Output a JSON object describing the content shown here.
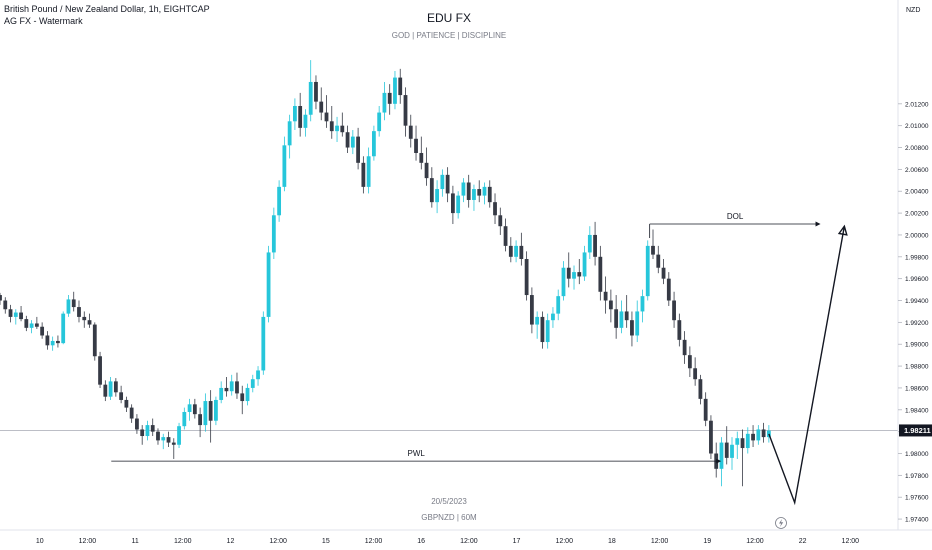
{
  "header": {
    "symbol_line": "British Pound / New Zealand Dollar, 1h, EIGHTCAP",
    "watermark_line": "AG FX - Watermark"
  },
  "watermark": {
    "title": "EDU FX",
    "subtitle": "GOD  |  PATIENCE  |  DISCIPLINE",
    "date": "20/5/2023",
    "symbol": "GBPNZD | 60M"
  },
  "price_axis": {
    "currency": "NZD",
    "current_price_label": "1.98211"
  },
  "annotations": {
    "dol_label": "DOL",
    "pwl_label": "PWL"
  },
  "colors": {
    "bull": "#26c6da",
    "bear": "#363a45",
    "axis_text": "#131722",
    "watermark_text": "#787b86",
    "current_price_line": "#b2b5be"
  },
  "chart_data": {
    "type": "candlestick",
    "title": "British Pound / New Zealand Dollar, 1h, EIGHTCAP",
    "ylabel": "NZD",
    "ylim": [
      1.973,
      2.0215
    ],
    "y_ticks": [
      "2.01200",
      "2.01000",
      "2.00800",
      "2.00600",
      "2.00400",
      "2.00200",
      "2.00000",
      "1.99800",
      "1.99600",
      "1.99400",
      "1.99200",
      "1.99000",
      "1.98800",
      "1.98600",
      "1.98400",
      "1.98200",
      "1.98000",
      "1.97800",
      "1.97600",
      "1.97400"
    ],
    "y_tick_values": [
      2.012,
      2.01,
      2.008,
      2.006,
      2.004,
      2.002,
      2.0,
      1.998,
      1.996,
      1.994,
      1.992,
      1.99,
      1.988,
      1.986,
      1.984,
      1.982,
      1.98,
      1.978,
      1.976,
      1.974
    ],
    "x_ticks": [
      {
        "label": "10",
        "t": 0.1
      },
      {
        "label": "12:00",
        "t": 0.22
      },
      {
        "label": "11",
        "t": 0.34
      },
      {
        "label": "12:00",
        "t": 0.46
      },
      {
        "label": "12",
        "t": 0.58
      },
      {
        "label": "12:00",
        "t": 0.7
      },
      {
        "label": "15",
        "t": 0.82
      },
      {
        "label": "12:00",
        "t": 0.94
      },
      {
        "label": "16",
        "t": 1.06
      },
      {
        "label": "12:00",
        "t": 1.18
      },
      {
        "label": "17",
        "t": 1.3
      },
      {
        "label": "12:00",
        "t": 1.42
      },
      {
        "label": "18",
        "t": 1.54
      },
      {
        "label": "12:00",
        "t": 1.66
      },
      {
        "label": "19",
        "t": 1.78
      },
      {
        "label": "12:00",
        "t": 1.9
      },
      {
        "label": "22",
        "t": 2.02
      },
      {
        "label": "12:00",
        "t": 2.14
      }
    ],
    "x_range": [
      0,
      2.26
    ],
    "current_price": 1.98211,
    "levels": {
      "dol": {
        "price": 2.001,
        "t_start": 1.635,
        "t_end": 2.065
      },
      "pwl": {
        "price": 1.9793,
        "t_start": 0.28,
        "t_end": 1.815
      }
    },
    "projection": [
      {
        "t": 1.935,
        "price": 1.9818
      },
      {
        "t": 2.0,
        "price": 1.9755
      },
      {
        "t": 2.125,
        "price": 2.0008
      }
    ],
    "candles": [
      [
        1.9945,
        1.9947,
        1.9936,
        1.994
      ],
      [
        1.994,
        1.9943,
        1.9928,
        1.9932
      ],
      [
        1.9932,
        1.9936,
        1.992,
        1.9925
      ],
      [
        1.9925,
        1.9932,
        1.9918,
        1.9929
      ],
      [
        1.9929,
        1.9935,
        1.9921,
        1.9923
      ],
      [
        1.9923,
        1.9926,
        1.9912,
        1.9915
      ],
      [
        1.9915,
        1.9922,
        1.991,
        1.9919
      ],
      [
        1.9919,
        1.9925,
        1.9914,
        1.9916
      ],
      [
        1.9916,
        1.992,
        1.9905,
        1.9908
      ],
      [
        1.9908,
        1.9912,
        1.9895,
        1.9899
      ],
      [
        1.9899,
        1.9907,
        1.9894,
        1.9903
      ],
      [
        1.9903,
        1.9908,
        1.9897,
        1.9901
      ],
      [
        1.9901,
        1.993,
        1.99,
        1.9928
      ],
      [
        1.9928,
        1.9945,
        1.9925,
        1.9941
      ],
      [
        1.9941,
        1.9948,
        1.993,
        1.9934
      ],
      [
        1.9934,
        1.994,
        1.992,
        1.9925
      ],
      [
        1.9925,
        1.993,
        1.9915,
        1.9922
      ],
      [
        1.9922,
        1.9928,
        1.9915,
        1.9918
      ],
      [
        1.9918,
        1.992,
        1.9885,
        1.9889
      ],
      [
        1.9889,
        1.9893,
        1.986,
        1.9863
      ],
      [
        1.9863,
        1.9867,
        1.9848,
        1.9852
      ],
      [
        1.9852,
        1.987,
        1.9849,
        1.9866
      ],
      [
        1.9866,
        1.9869,
        1.9852,
        1.9856
      ],
      [
        1.9856,
        1.9862,
        1.9846,
        1.9849
      ],
      [
        1.9849,
        1.9852,
        1.9838,
        1.9842
      ],
      [
        1.9842,
        1.9845,
        1.9828,
        1.9832
      ],
      [
        1.9832,
        1.9836,
        1.9818,
        1.9822
      ],
      [
        1.9822,
        1.9826,
        1.9808,
        1.9816
      ],
      [
        1.9816,
        1.983,
        1.9812,
        1.9826
      ],
      [
        1.9826,
        1.9832,
        1.9816,
        1.982
      ],
      [
        1.982,
        1.9823,
        1.9808,
        1.9812
      ],
      [
        1.9812,
        1.9818,
        1.9804,
        1.9815
      ],
      [
        1.9815,
        1.982,
        1.9806,
        1.981
      ],
      [
        1.981,
        1.9814,
        1.9795,
        1.9808
      ],
      [
        1.9808,
        1.9828,
        1.9805,
        1.9825
      ],
      [
        1.9825,
        1.9842,
        1.9822,
        1.9838
      ],
      [
        1.9838,
        1.985,
        1.983,
        1.9845
      ],
      [
        1.9845,
        1.985,
        1.9832,
        1.9836
      ],
      [
        1.9836,
        1.9842,
        1.9815,
        1.9826
      ],
      [
        1.9826,
        1.9855,
        1.982,
        1.9848
      ],
      [
        1.9848,
        1.9858,
        1.981,
        1.983
      ],
      [
        1.983,
        1.9852,
        1.9826,
        1.9849
      ],
      [
        1.9849,
        1.9866,
        1.9846,
        1.986
      ],
      [
        1.986,
        1.987,
        1.9852,
        1.9857
      ],
      [
        1.9857,
        1.9872,
        1.9853,
        1.9866
      ],
      [
        1.9866,
        1.9874,
        1.985,
        1.9855
      ],
      [
        1.9855,
        1.9862,
        1.9836,
        1.9848
      ],
      [
        1.9848,
        1.9864,
        1.9844,
        1.986
      ],
      [
        1.986,
        1.9872,
        1.9856,
        1.9868
      ],
      [
        1.9868,
        1.988,
        1.9862,
        1.9876
      ],
      [
        1.9876,
        1.993,
        1.9872,
        1.9925
      ],
      [
        1.9925,
        1.999,
        1.992,
        1.9984
      ],
      [
        1.9984,
        2.0025,
        1.9978,
        2.0018
      ],
      [
        2.0018,
        2.005,
        2.0012,
        2.0044
      ],
      [
        2.0044,
        2.009,
        2.004,
        2.0082
      ],
      [
        2.0082,
        2.011,
        2.007,
        2.0104
      ],
      [
        2.0104,
        2.0125,
        2.0096,
        2.0118
      ],
      [
        2.0118,
        2.013,
        2.009,
        2.0098
      ],
      [
        2.0098,
        2.0115,
        2.009,
        2.011
      ],
      [
        2.011,
        2.016,
        2.0104,
        2.014
      ],
      [
        2.014,
        2.0146,
        2.0115,
        2.0122
      ],
      [
        2.0122,
        2.0135,
        2.0105,
        2.0112
      ],
      [
        2.0112,
        2.0128,
        2.0098,
        2.0104
      ],
      [
        2.0104,
        2.0118,
        2.0088,
        2.0095
      ],
      [
        2.0095,
        2.0108,
        2.0085,
        2.01
      ],
      [
        2.01,
        2.0112,
        2.009,
        2.0094
      ],
      [
        2.0094,
        2.01,
        2.0075,
        2.008
      ],
      [
        2.008,
        2.0096,
        2.0074,
        2.009
      ],
      [
        2.009,
        2.0098,
        2.006,
        2.0066
      ],
      [
        2.0066,
        2.0072,
        2.0038,
        2.0044
      ],
      [
        2.0044,
        2.008,
        2.0038,
        2.0072
      ],
      [
        2.0072,
        2.01,
        2.0068,
        2.0095
      ],
      [
        2.0095,
        2.0118,
        2.009,
        2.0112
      ],
      [
        2.0112,
        2.014,
        2.0105,
        2.013
      ],
      [
        2.013,
        2.0138,
        2.011,
        2.012
      ],
      [
        2.012,
        2.015,
        2.0115,
        2.0144
      ],
      [
        2.0144,
        2.0152,
        2.012,
        2.0128
      ],
      [
        2.0128,
        2.0135,
        2.009,
        2.01
      ],
      [
        2.01,
        2.011,
        2.008,
        2.0088
      ],
      [
        2.0088,
        2.01,
        2.0068,
        2.0075
      ],
      [
        2.0075,
        2.009,
        2.006,
        2.0066
      ],
      [
        2.0066,
        2.008,
        2.0045,
        2.0052
      ],
      [
        2.0052,
        2.0062,
        2.0025,
        2.003
      ],
      [
        2.003,
        2.005,
        2.002,
        2.0042
      ],
      [
        2.0042,
        2.006,
        2.0035,
        2.0055
      ],
      [
        2.0055,
        2.0062,
        2.003,
        2.0038
      ],
      [
        2.0038,
        2.0045,
        2.001,
        2.002
      ],
      [
        2.002,
        2.004,
        2.0015,
        2.0036
      ],
      [
        2.0036,
        2.0052,
        2.003,
        2.0048
      ],
      [
        2.0048,
        2.0055,
        2.0025,
        2.0032
      ],
      [
        2.0032,
        2.0046,
        2.0022,
        2.0042
      ],
      [
        2.0042,
        2.005,
        2.003,
        2.0036
      ],
      [
        2.0036,
        2.0048,
        2.0028,
        2.0044
      ],
      [
        2.0044,
        2.005,
        2.0025,
        2.003
      ],
      [
        2.003,
        2.0038,
        2.001,
        2.0018
      ],
      [
        2.0018,
        2.0025,
        2.0,
        2.0008
      ],
      [
        2.0008,
        2.0015,
        1.9985,
        1.999
      ],
      [
        1.999,
        1.9998,
        1.9975,
        1.998
      ],
      [
        1.998,
        1.9995,
        1.9975,
        1.999
      ],
      [
        1.999,
        2.0002,
        1.9972,
        1.9978
      ],
      [
        1.9978,
        1.9985,
        1.994,
        1.9945
      ],
      [
        1.9945,
        1.9952,
        1.991,
        1.9918
      ],
      [
        1.9918,
        1.993,
        1.9905,
        1.9925
      ],
      [
        1.9925,
        1.993,
        1.9896,
        1.9902
      ],
      [
        1.9902,
        1.9928,
        1.9896,
        1.9922
      ],
      [
        1.9922,
        1.9934,
        1.9915,
        1.9928
      ],
      [
        1.9928,
        1.995,
        1.9922,
        1.9944
      ],
      [
        1.9944,
        1.9976,
        1.994,
        1.997
      ],
      [
        1.997,
        1.9984,
        1.9952,
        1.996
      ],
      [
        1.996,
        1.9972,
        1.995,
        1.9966
      ],
      [
        1.9966,
        1.9978,
        1.9955,
        1.9962
      ],
      [
        1.9962,
        1.999,
        1.9958,
        1.9984
      ],
      [
        1.9984,
        2.0008,
        1.9978,
        2.0
      ],
      [
        2.0,
        2.0012,
        1.9972,
        1.998
      ],
      [
        1.998,
        1.999,
        1.994,
        1.9948
      ],
      [
        1.9948,
        1.9962,
        1.9928,
        1.994
      ],
      [
        1.994,
        1.995,
        1.992,
        1.9932
      ],
      [
        1.9932,
        1.9945,
        1.9905,
        1.9915
      ],
      [
        1.9915,
        1.994,
        1.991,
        1.993
      ],
      [
        1.993,
        1.9945,
        1.9915,
        1.9922
      ],
      [
        1.9922,
        1.993,
        1.9898,
        1.9908
      ],
      [
        1.9908,
        1.994,
        1.9902,
        1.993
      ],
      [
        1.993,
        1.995,
        1.992,
        1.9944
      ],
      [
        1.9944,
        1.9995,
        1.994,
        1.999
      ],
      [
        1.999,
        2.0005,
        1.9978,
        1.9982
      ],
      [
        1.9982,
        1.999,
        1.9965,
        1.997
      ],
      [
        1.997,
        1.9978,
        1.9955,
        1.996
      ],
      [
        1.996,
        1.9966,
        1.9935,
        1.994
      ],
      [
        1.994,
        1.9948,
        1.9915,
        1.9922
      ],
      [
        1.9922,
        1.9928,
        1.9898,
        1.9904
      ],
      [
        1.9904,
        1.9912,
        1.9882,
        1.989
      ],
      [
        1.989,
        1.9898,
        1.987,
        1.9878
      ],
      [
        1.9878,
        1.9888,
        1.9862,
        1.9868
      ],
      [
        1.9868,
        1.9872,
        1.9845,
        1.985
      ],
      [
        1.985,
        1.9856,
        1.9825,
        1.983
      ],
      [
        1.983,
        1.9835,
        1.9795,
        1.98
      ],
      [
        1.98,
        1.981,
        1.9778,
        1.9786
      ],
      [
        1.9786,
        1.9815,
        1.977,
        1.981
      ],
      [
        1.981,
        1.9825,
        1.979,
        1.9796
      ],
      [
        1.9796,
        1.9815,
        1.9785,
        1.9808
      ],
      [
        1.9808,
        1.982,
        1.9795,
        1.9814
      ],
      [
        1.9814,
        1.9822,
        1.977,
        1.9805
      ],
      [
        1.9805,
        1.9824,
        1.98,
        1.9818
      ],
      [
        1.9818,
        1.9826,
        1.9806,
        1.9812
      ],
      [
        1.9812,
        1.9826,
        1.9808,
        1.9822
      ],
      [
        1.9822,
        1.9828,
        1.981,
        1.9815
      ],
      [
        1.9815,
        1.9826,
        1.981,
        1.9821
      ]
    ]
  }
}
